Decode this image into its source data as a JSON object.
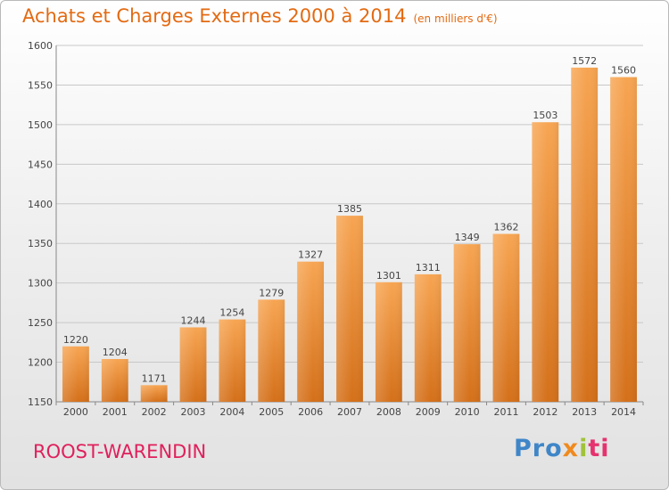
{
  "header": {
    "title": "Achats et Charges Externes 2000 à 2014",
    "subtitle": "(en milliers d'€)"
  },
  "footer": {
    "city": "ROOST-WARENDIN",
    "logo": {
      "p1": "Pro",
      "p2": "x",
      "p3": "i",
      "p4": "ti"
    }
  },
  "colors": {
    "bar_light": "#f7a552",
    "bar_dark": "#d4701a",
    "grid": "#c8c8c8",
    "title": "#e36a12",
    "city": "#e0205c"
  },
  "chart_data": {
    "type": "bar",
    "title": "Achats et Charges Externes 2000 à 2014",
    "subtitle": "(en milliers d'€)",
    "categories": [
      "2000",
      "2001",
      "2002",
      "2003",
      "2004",
      "2005",
      "2006",
      "2007",
      "2008",
      "2009",
      "2010",
      "2011",
      "2012",
      "2013",
      "2014"
    ],
    "values": [
      1220,
      1204,
      1171,
      1244,
      1254,
      1279,
      1327,
      1385,
      1301,
      1311,
      1349,
      1362,
      1503,
      1572,
      1560
    ],
    "ylim": [
      1150,
      1600
    ],
    "yticks": [
      1150,
      1200,
      1250,
      1300,
      1350,
      1400,
      1450,
      1500,
      1550,
      1600
    ],
    "grid": true,
    "xlabel": "",
    "ylabel": ""
  }
}
